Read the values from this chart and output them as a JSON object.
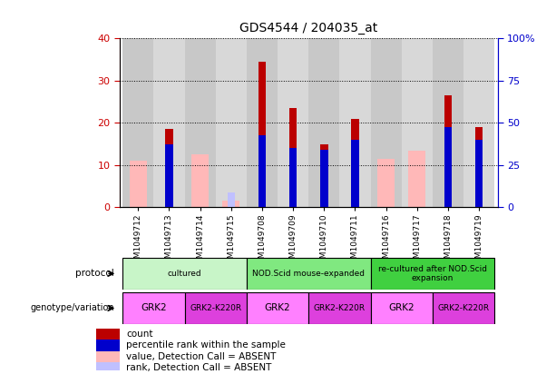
{
  "title": "GDS4544 / 204035_at",
  "samples": [
    "GSM1049712",
    "GSM1049713",
    "GSM1049714",
    "GSM1049715",
    "GSM1049708",
    "GSM1049709",
    "GSM1049710",
    "GSM1049711",
    "GSM1049716",
    "GSM1049717",
    "GSM1049718",
    "GSM1049719"
  ],
  "count_values": [
    0,
    18.5,
    0,
    0,
    34.5,
    23.5,
    15.0,
    21.0,
    0,
    0,
    26.5,
    19.0
  ],
  "count_absent": [
    11.0,
    0,
    12.5,
    1.5,
    0,
    0,
    0,
    0,
    11.5,
    13.5,
    0,
    0
  ],
  "rank_present": [
    0,
    37.5,
    0,
    0,
    42.5,
    35.0,
    34.0,
    40.0,
    0,
    0,
    47.5,
    40.0
  ],
  "rank_absent": [
    0,
    0,
    0,
    9.0,
    0,
    0,
    0,
    0,
    0,
    0,
    0,
    0
  ],
  "protocol_groups": [
    {
      "label": "cultured",
      "start": 0,
      "end": 3,
      "color": "#c8f5c8"
    },
    {
      "label": "NOD.Scid mouse-expanded",
      "start": 4,
      "end": 7,
      "color": "#80e880"
    },
    {
      "label": "re-cultured after NOD.Scid\nexpansion",
      "start": 8,
      "end": 11,
      "color": "#40d040"
    }
  ],
  "genotype_groups": [
    {
      "label": "GRK2",
      "start": 0,
      "end": 1,
      "color": "#ff80ff"
    },
    {
      "label": "GRK2-K220R",
      "start": 2,
      "end": 3,
      "color": "#dd40dd"
    },
    {
      "label": "GRK2",
      "start": 4,
      "end": 5,
      "color": "#ff80ff"
    },
    {
      "label": "GRK2-K220R",
      "start": 6,
      "end": 7,
      "color": "#dd40dd"
    },
    {
      "label": "GRK2",
      "start": 8,
      "end": 9,
      "color": "#ff80ff"
    },
    {
      "label": "GRK2-K220R",
      "start": 10,
      "end": 11,
      "color": "#dd40dd"
    }
  ],
  "ylim_left": [
    0,
    40
  ],
  "ylim_right": [
    0,
    100
  ],
  "yticks_left": [
    0,
    10,
    20,
    30,
    40
  ],
  "yticks_right": [
    0,
    25,
    50,
    75,
    100
  ],
  "color_count": "#bb0000",
  "color_rank": "#0000cc",
  "color_absent_val": "#ffb8b8",
  "color_absent_rank": "#c0c0ff",
  "color_axis_left": "#cc0000",
  "color_axis_right": "#0000cc",
  "legend_items": [
    {
      "label": "count",
      "color": "#bb0000"
    },
    {
      "label": "percentile rank within the sample",
      "color": "#0000cc"
    },
    {
      "label": "value, Detection Call = ABSENT",
      "color": "#ffb8b8"
    },
    {
      "label": "rank, Detection Call = ABSENT",
      "color": "#c0c0ff"
    }
  ],
  "col_bg_even": "#c8c8c8",
  "col_bg_odd": "#d8d8d8"
}
